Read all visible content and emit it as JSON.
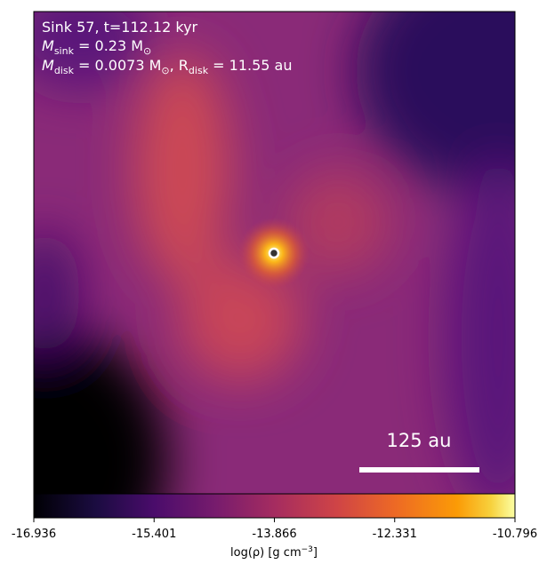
{
  "chart_data": {
    "type": "image",
    "annotations": {
      "line1": [
        "Sink 57, t=112.12 kyr"
      ],
      "line2": [
        "M",
        "sink",
        " = 0.23 M",
        "⊙"
      ],
      "line3": [
        "M",
        "disk",
        " = 0.0073 M",
        "⊙",
        ", R",
        "disk",
        " = 11.55 au"
      ]
    },
    "scale_bar_label": "125 au",
    "colorbar": {
      "label": [
        "log(ρ) [g cm",
        "−3",
        "]"
      ],
      "clim": [
        -16.936,
        -10.796
      ],
      "ticks": [
        -16.936,
        -15.401,
        -13.866,
        -12.331,
        -10.796
      ]
    }
  }
}
